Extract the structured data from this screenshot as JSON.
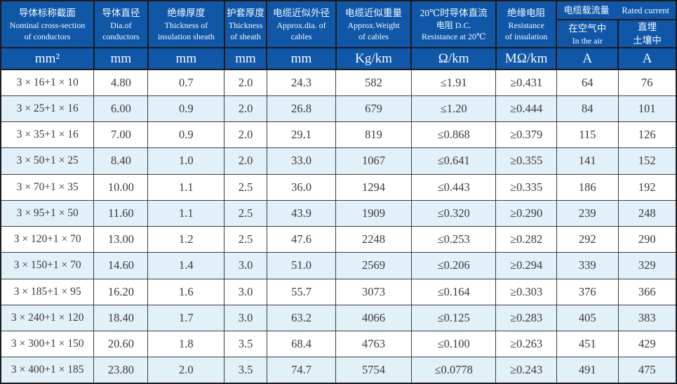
{
  "table": {
    "header": {
      "columns": [
        {
          "lines": [
            "导体标称截面",
            "Nominal cross-section",
            "of conductors"
          ]
        },
        {
          "lines": [
            "导体直径",
            "Dia.of",
            "conductors"
          ]
        },
        {
          "lines": [
            "绝缘厚度",
            "Thickness of",
            "insulation sheath"
          ]
        },
        {
          "lines": [
            "护套厚度",
            "Thickness",
            "of sheath"
          ]
        },
        {
          "lines": [
            "电缆近似外径",
            "Approx.dia. of",
            "cables"
          ]
        },
        {
          "lines": [
            "电缆近似重量",
            "Approx.Weight",
            "of cables"
          ]
        },
        {
          "lines": [
            "20℃时导体直流",
            "电阻 D.C.",
            "Resistance at 20℃"
          ]
        },
        {
          "lines": [
            "绝缘电阻",
            "Resistance",
            "of insulation"
          ]
        }
      ],
      "rated_current_group": {
        "title_zh": "电缆载流量",
        "title_en": "Rated current",
        "sub_air": {
          "line1": "在空气中",
          "line2": "In the air"
        },
        "sub_buried": {
          "line1": "直埋",
          "line2": "土壤中"
        }
      },
      "units": [
        "mm²",
        "mm",
        "mm",
        "mm",
        "mm",
        "Kg/km",
        "Ω/km",
        "MΩ/km",
        "A",
        "A"
      ]
    },
    "rows": [
      [
        "3 × 16+1 × 10",
        "4.80",
        "0.7",
        "2.0",
        "24.3",
        "582",
        "≤1.91",
        "≥0.431",
        "64",
        "76"
      ],
      [
        "3 × 25+1 × 16",
        "6.00",
        "0.9",
        "2.0",
        "26.8",
        "679",
        "≤1.20",
        "≥0.444",
        "84",
        "101"
      ],
      [
        "3 × 35+1 × 16",
        "7.00",
        "0.9",
        "2.0",
        "29.1",
        "819",
        "≤0.868",
        "≥0.379",
        "115",
        "126"
      ],
      [
        "3 × 50+1 × 25",
        "8.40",
        "1.0",
        "2.0",
        "33.0",
        "1067",
        "≤0.641",
        "≥0.355",
        "141",
        "152"
      ],
      [
        "3 × 70+1 × 35",
        "10.00",
        "1.1",
        "2.5",
        "36.0",
        "1294",
        "≤0.443",
        "≥0.335",
        "186",
        "192"
      ],
      [
        "3 × 95+1 × 50",
        "11.60",
        "1.1",
        "2.5",
        "43.9",
        "1909",
        "≤0.320",
        "≥0.290",
        "239",
        "248"
      ],
      [
        "3 × 120+1 × 70",
        "13.00",
        "1.2",
        "2.5",
        "47.6",
        "2248",
        "≤0.253",
        "≥0.282",
        "292",
        "290"
      ],
      [
        "3 × 150+1 × 70",
        "14.60",
        "1.4",
        "3.0",
        "51.0",
        "2569",
        "≤0.206",
        "≥0.294",
        "339",
        "329"
      ],
      [
        "3 × 185+1 × 95",
        "16.20",
        "1.6",
        "3.0",
        "55.7",
        "3073",
        "≤0.164",
        "≥0.303",
        "376",
        "366"
      ],
      [
        "3 × 240+1 × 120",
        "18.40",
        "1.7",
        "3.0",
        "63.2",
        "4066",
        "≤0.125",
        "≥0.283",
        "405",
        "383"
      ],
      [
        "3 × 300+1 × 150",
        "20.60",
        "1.8",
        "3.5",
        "68.4",
        "4763",
        "≤0.100",
        "≥0.263",
        "451",
        "429"
      ],
      [
        "3 × 400+1 × 185",
        "23.80",
        "2.0",
        "3.5",
        "74.7",
        "5754",
        "≤0.0778",
        "≥0.243",
        "491",
        "475"
      ]
    ]
  },
  "colors": {
    "header_bg": "#1157a8",
    "header_text": "#f2f9ff",
    "row_alt": "#e2f0f9",
    "row_default": "#ffffff",
    "border": "#1c1c1c",
    "data_text": "#3a3a3a"
  }
}
